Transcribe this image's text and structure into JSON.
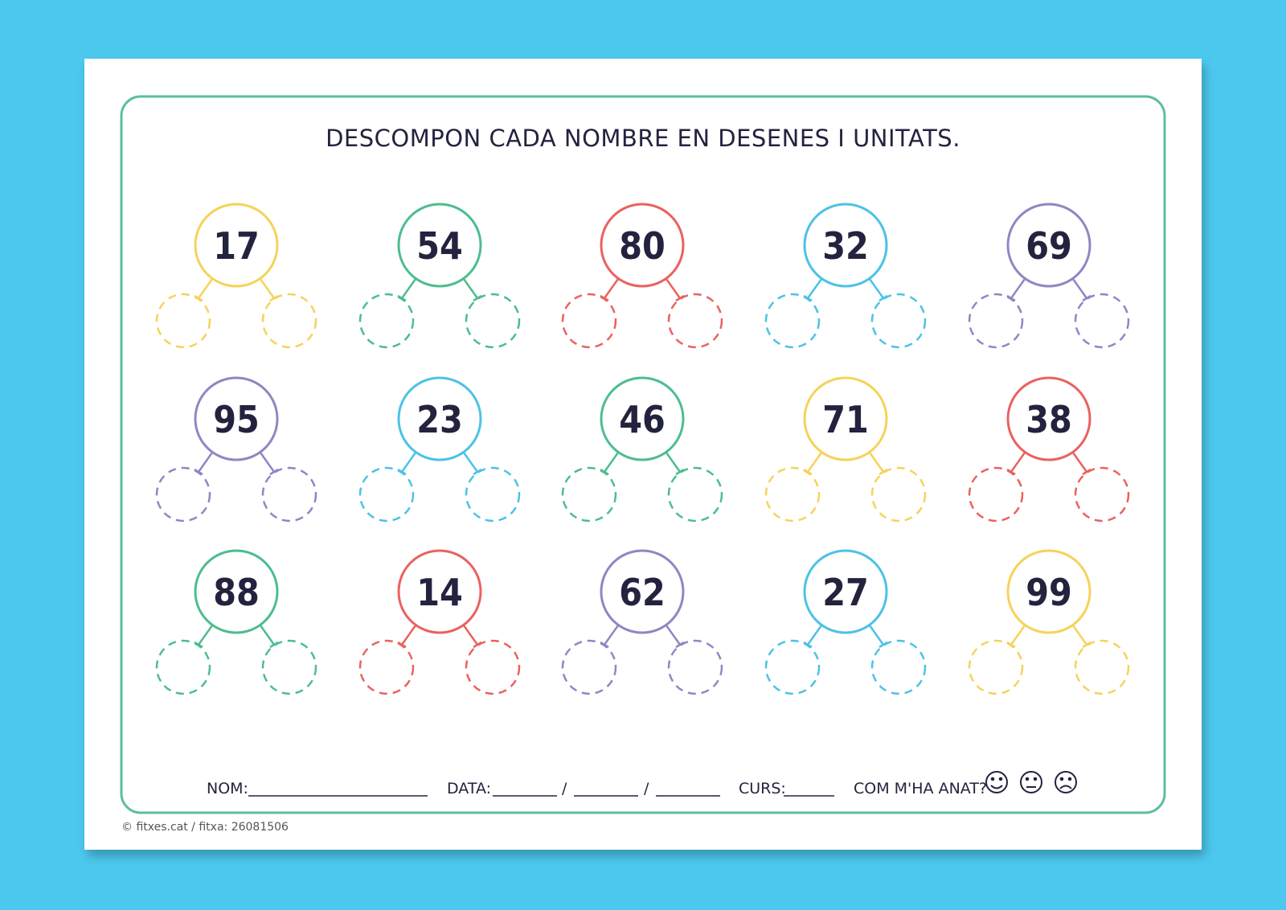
{
  "title": "DESCOMPON CADA NOMBRE EN DESENES I UNITATS.",
  "numbers": [
    {
      "value": 17,
      "color": "#f5d35a"
    },
    {
      "value": 54,
      "color": "#4dbd8e"
    },
    {
      "value": 80,
      "color": "#e9625f"
    },
    {
      "value": 32,
      "color": "#4cc2e6"
    },
    {
      "value": 69,
      "color": "#9285c3"
    },
    {
      "value": 95,
      "color": "#9285c3"
    },
    {
      "value": 23,
      "color": "#4cc2e6"
    },
    {
      "value": 46,
      "color": "#4dbd8e"
    },
    {
      "value": 71,
      "color": "#f5d35a"
    },
    {
      "value": 38,
      "color": "#e9625f"
    },
    {
      "value": 88,
      "color": "#4dbd8e"
    },
    {
      "value": 14,
      "color": "#e9625f"
    },
    {
      "value": 62,
      "color": "#9285c3"
    },
    {
      "value": 27,
      "color": "#4cc2e6"
    },
    {
      "value": 99,
      "color": "#f5d35a"
    }
  ],
  "footer": {
    "name_label": "NOM:",
    "date_label": "DATA:",
    "separator": "/",
    "course_label": "CURS:",
    "rating_label": "COM M'HA ANAT?"
  },
  "copyright": "© fitxes.cat / fitxa: 26081506"
}
